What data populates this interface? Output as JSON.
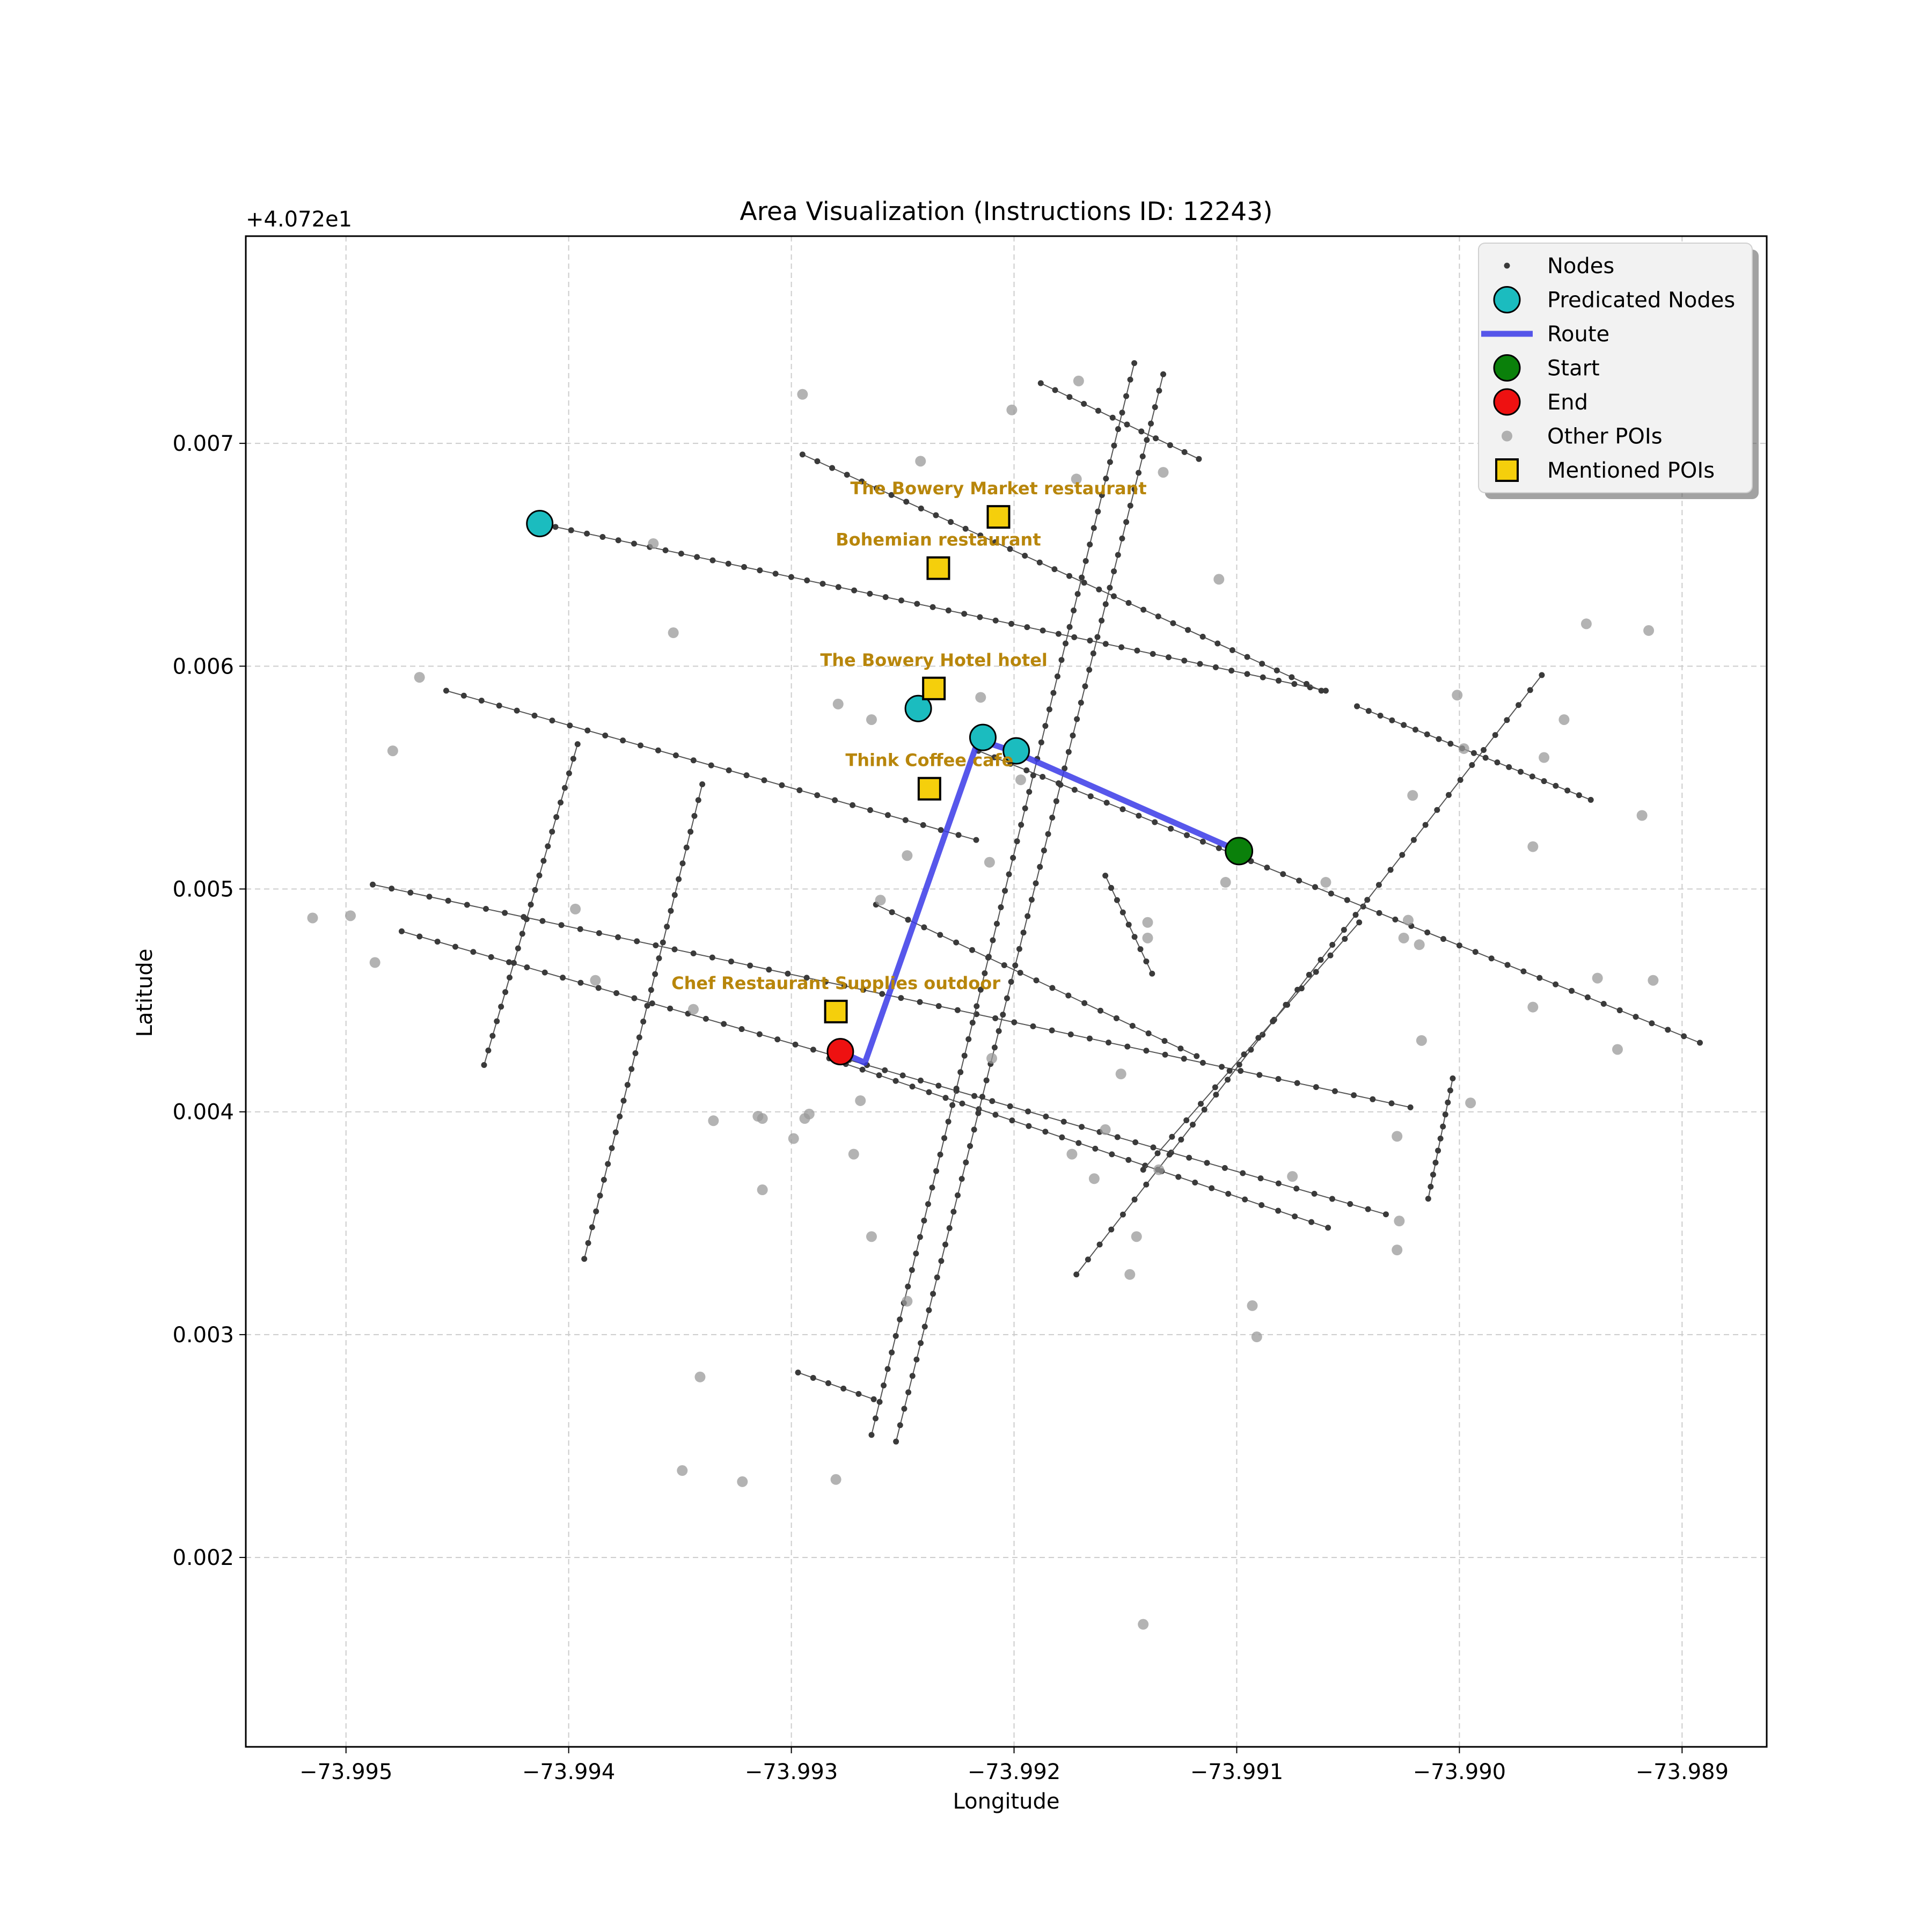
{
  "chart_data": {
    "type": "map",
    "title": "Area Visualization (Instructions ID: 12243)",
    "xlabel": "Longitude",
    "ylabel": "Latitude",
    "y_offset_label": "+4.072e1",
    "xlim": [
      -73.99545,
      -73.98862
    ],
    "ylim": [
      0.00115,
      0.00793
    ],
    "x_ticks": [
      -73.995,
      -73.994,
      -73.993,
      -73.992,
      -73.991,
      -73.99,
      -73.989
    ],
    "x_tick_labels": [
      "−73.995",
      "−73.994",
      "−73.993",
      "−73.992",
      "−73.991",
      "−73.990",
      "−73.989"
    ],
    "y_ticks": [
      0.002,
      0.003,
      0.004,
      0.005,
      0.006,
      0.007
    ],
    "y_tick_labels": [
      "0.002",
      "0.003",
      "0.004",
      "0.005",
      "0.006",
      "0.007"
    ],
    "grid": true,
    "legend_position": "top-right",
    "legend": [
      {
        "label": "Nodes",
        "kind": "node"
      },
      {
        "label": "Predicated Nodes",
        "kind": "predicated"
      },
      {
        "label": "Route",
        "kind": "route"
      },
      {
        "label": "Start",
        "kind": "start"
      },
      {
        "label": "End",
        "kind": "end"
      },
      {
        "label": "Other POIs",
        "kind": "poi"
      },
      {
        "label": "Mentioned POIs",
        "kind": "mentioned"
      }
    ],
    "colors": {
      "node": "#3a3a3a",
      "edge": "#555555",
      "predicated": "#1bbcbf",
      "route": "#3a3ae8",
      "start": "#0a800a",
      "end": "#ee1111",
      "poi": "#9a9a9a",
      "mentioned_fill": "#f5cf0c",
      "poi_label": "#b8860b",
      "grid": "#cccccc"
    },
    "streets": [
      {
        "from": [
          -73.99413,
          0.00664
        ],
        "to": [
          -73.9906,
          0.00589
        ],
        "n": 50
      },
      {
        "from": [
          -73.99295,
          0.00695
        ],
        "to": [
          -73.99062,
          0.00589
        ],
        "n": 35
      },
      {
        "from": [
          -73.99188,
          0.00727
        ],
        "to": [
          -73.99117,
          0.00693
        ],
        "n": 11
      },
      {
        "from": [
          -73.99455,
          0.00589
        ],
        "to": [
          -73.99217,
          0.00522
        ],
        "n": 30
      },
      {
        "from": [
          -73.99216,
          0.00562
        ],
        "to": [
          -73.98892,
          0.00431
        ],
        "n": 45
      },
      {
        "from": [
          -73.99488,
          0.00502
        ],
        "to": [
          -73.99022,
          0.00402
        ],
        "n": 55
      },
      {
        "from": [
          -73.99475,
          0.00481
        ],
        "to": [
          -73.99033,
          0.00354
        ],
        "n": 55
      },
      {
        "from": [
          -73.99283,
          0.00424
        ],
        "to": [
          -73.99059,
          0.00348
        ],
        "n": 30
      },
      {
        "from": [
          -73.99396,
          0.00565
        ],
        "to": [
          -73.99438,
          0.00421
        ],
        "n": 22
      },
      {
        "from": [
          -73.9934,
          0.00547
        ],
        "to": [
          -73.99393,
          0.00334
        ],
        "n": 30
      },
      {
        "from": [
          -73.99146,
          0.00736
        ],
        "to": [
          -73.99264,
          0.00255
        ],
        "n": 65
      },
      {
        "from": [
          -73.99133,
          0.00731
        ],
        "to": [
          -73.99253,
          0.00252
        ],
        "n": 65
      },
      {
        "from": [
          -73.99297,
          0.00283
        ],
        "to": [
          -73.99263,
          0.00271
        ],
        "n": 5
      },
      {
        "from": [
          -73.99262,
          0.00493
        ],
        "to": [
          -73.99118,
          0.00425
        ],
        "n": 20
      },
      {
        "from": [
          -73.99159,
          0.00506
        ],
        "to": [
          -73.99138,
          0.00462
        ],
        "n": 8
      },
      {
        "from": [
          -73.99046,
          0.00582
        ],
        "to": [
          -73.98941,
          0.0054
        ],
        "n": 20
      },
      {
        "from": [
          -73.98963,
          0.00596
        ],
        "to": [
          -73.99172,
          0.00327
        ],
        "n": 40
      },
      {
        "from": [
          -73.99045,
          0.00485
        ],
        "to": [
          -73.99142,
          0.00374
        ],
        "n": 15
      },
      {
        "from": [
          -73.99003,
          0.00415
        ],
        "to": [
          -73.99014,
          0.00361
        ],
        "n": 10
      }
    ],
    "route": [
      [
        -73.99099,
        0.00517
      ],
      [
        -73.99201,
        0.00562
      ],
      [
        -73.99216,
        0.00567
      ],
      [
        -73.99267,
        0.00422
      ],
      [
        -73.99278,
        0.00427
      ]
    ],
    "start": [
      -73.99099,
      0.00517
    ],
    "end": [
      -73.99278,
      0.00427
    ],
    "predicated_nodes": [
      [
        -73.99413,
        0.00664
      ],
      [
        -73.99243,
        0.00581
      ],
      [
        -73.99214,
        0.00568
      ],
      [
        -73.99199,
        0.00562
      ]
    ],
    "other_pois": [
      [
        -73.99295,
        0.00722
      ],
      [
        -73.99201,
        0.00715
      ],
      [
        -73.99171,
        0.00728
      ],
      [
        -73.99242,
        0.00692
      ],
      [
        -73.99133,
        0.00687
      ],
      [
        -73.99172,
        0.00684
      ],
      [
        -73.99362,
        0.00655
      ],
      [
        -73.99108,
        0.00639
      ],
      [
        -73.99353,
        0.00615
      ],
      [
        -73.98915,
        0.00616
      ],
      [
        -73.98943,
        0.00619
      ],
      [
        -73.99467,
        0.00595
      ],
      [
        -73.99479,
        0.00562
      ],
      [
        -73.99279,
        0.00583
      ],
      [
        -73.99264,
        0.00576
      ],
      [
        -73.99215,
        0.00586
      ],
      [
        -73.99001,
        0.00587
      ],
      [
        -73.98953,
        0.00576
      ],
      [
        -73.98998,
        0.00563
      ],
      [
        -73.98962,
        0.00559
      ],
      [
        -73.99197,
        0.00549
      ],
      [
        -73.99021,
        0.00542
      ],
      [
        -73.98918,
        0.00533
      ],
      [
        -73.98967,
        0.00519
      ],
      [
        -73.99211,
        0.00512
      ],
      [
        -73.99248,
        0.00515
      ],
      [
        -73.9926,
        0.00495
      ],
      [
        -73.99105,
        0.00503
      ],
      [
        -73.9906,
        0.00503
      ],
      [
        -73.99515,
        0.00487
      ],
      [
        -73.99498,
        0.00488
      ],
      [
        -73.99487,
        0.00467
      ],
      [
        -73.99397,
        0.00491
      ],
      [
        -73.99388,
        0.00459
      ],
      [
        -73.99344,
        0.00446
      ],
      [
        -73.9914,
        0.00485
      ],
      [
        -73.9914,
        0.00478
      ],
      [
        -73.99023,
        0.00486
      ],
      [
        -73.99025,
        0.00478
      ],
      [
        -73.99018,
        0.00475
      ],
      [
        -73.98938,
        0.0046
      ],
      [
        -73.98967,
        0.00447
      ],
      [
        -73.98929,
        0.00428
      ],
      [
        -73.99017,
        0.00432
      ],
      [
        -73.99152,
        0.00417
      ],
      [
        -73.9921,
        0.00424
      ],
      [
        -73.99269,
        0.00405
      ],
      [
        -73.98995,
        0.00404
      ],
      [
        -73.99335,
        0.00396
      ],
      [
        -73.99315,
        0.00398
      ],
      [
        -73.99313,
        0.00397
      ],
      [
        -73.99292,
        0.00399
      ],
      [
        -73.99294,
        0.00397
      ],
      [
        -73.99299,
        0.00388
      ],
      [
        -73.99159,
        0.00392
      ],
      [
        -73.99135,
        0.00374
      ],
      [
        -73.99164,
        0.0037
      ],
      [
        -73.99174,
        0.00381
      ],
      [
        -73.99272,
        0.00381
      ],
      [
        -73.99028,
        0.00389
      ],
      [
        -73.99075,
        0.00371
      ],
      [
        -73.99313,
        0.00365
      ],
      [
        -73.99264,
        0.00344
      ],
      [
        -73.99027,
        0.00351
      ],
      [
        -73.99145,
        0.00344
      ],
      [
        -73.99028,
        0.00338
      ],
      [
        -73.99148,
        0.00327
      ],
      [
        -73.99093,
        0.00313
      ],
      [
        -73.99091,
        0.00299
      ],
      [
        -73.99248,
        0.00315
      ],
      [
        -73.99341,
        0.00281
      ],
      [
        -73.99349,
        0.00239
      ],
      [
        -73.99322,
        0.00234
      ],
      [
        -73.9928,
        0.00235
      ],
      [
        -73.99142,
        0.0017
      ],
      [
        -73.98913,
        0.00459
      ]
    ],
    "mentioned_pois": [
      {
        "pos": [
          -73.99207,
          0.00667
        ],
        "label": "The Bowery Market restaurant"
      },
      {
        "pos": [
          -73.99234,
          0.00644
        ],
        "label": "Bohemian restaurant"
      },
      {
        "pos": [
          -73.99236,
          0.0059
        ],
        "label": "The Bowery Hotel    hotel"
      },
      {
        "pos": [
          -73.99238,
          0.00545
        ],
        "label": "Think Coffee cafe"
      },
      {
        "pos": [
          -73.9928,
          0.00445
        ],
        "label": "Chef Restaurant Supplies     outdoor"
      }
    ]
  }
}
